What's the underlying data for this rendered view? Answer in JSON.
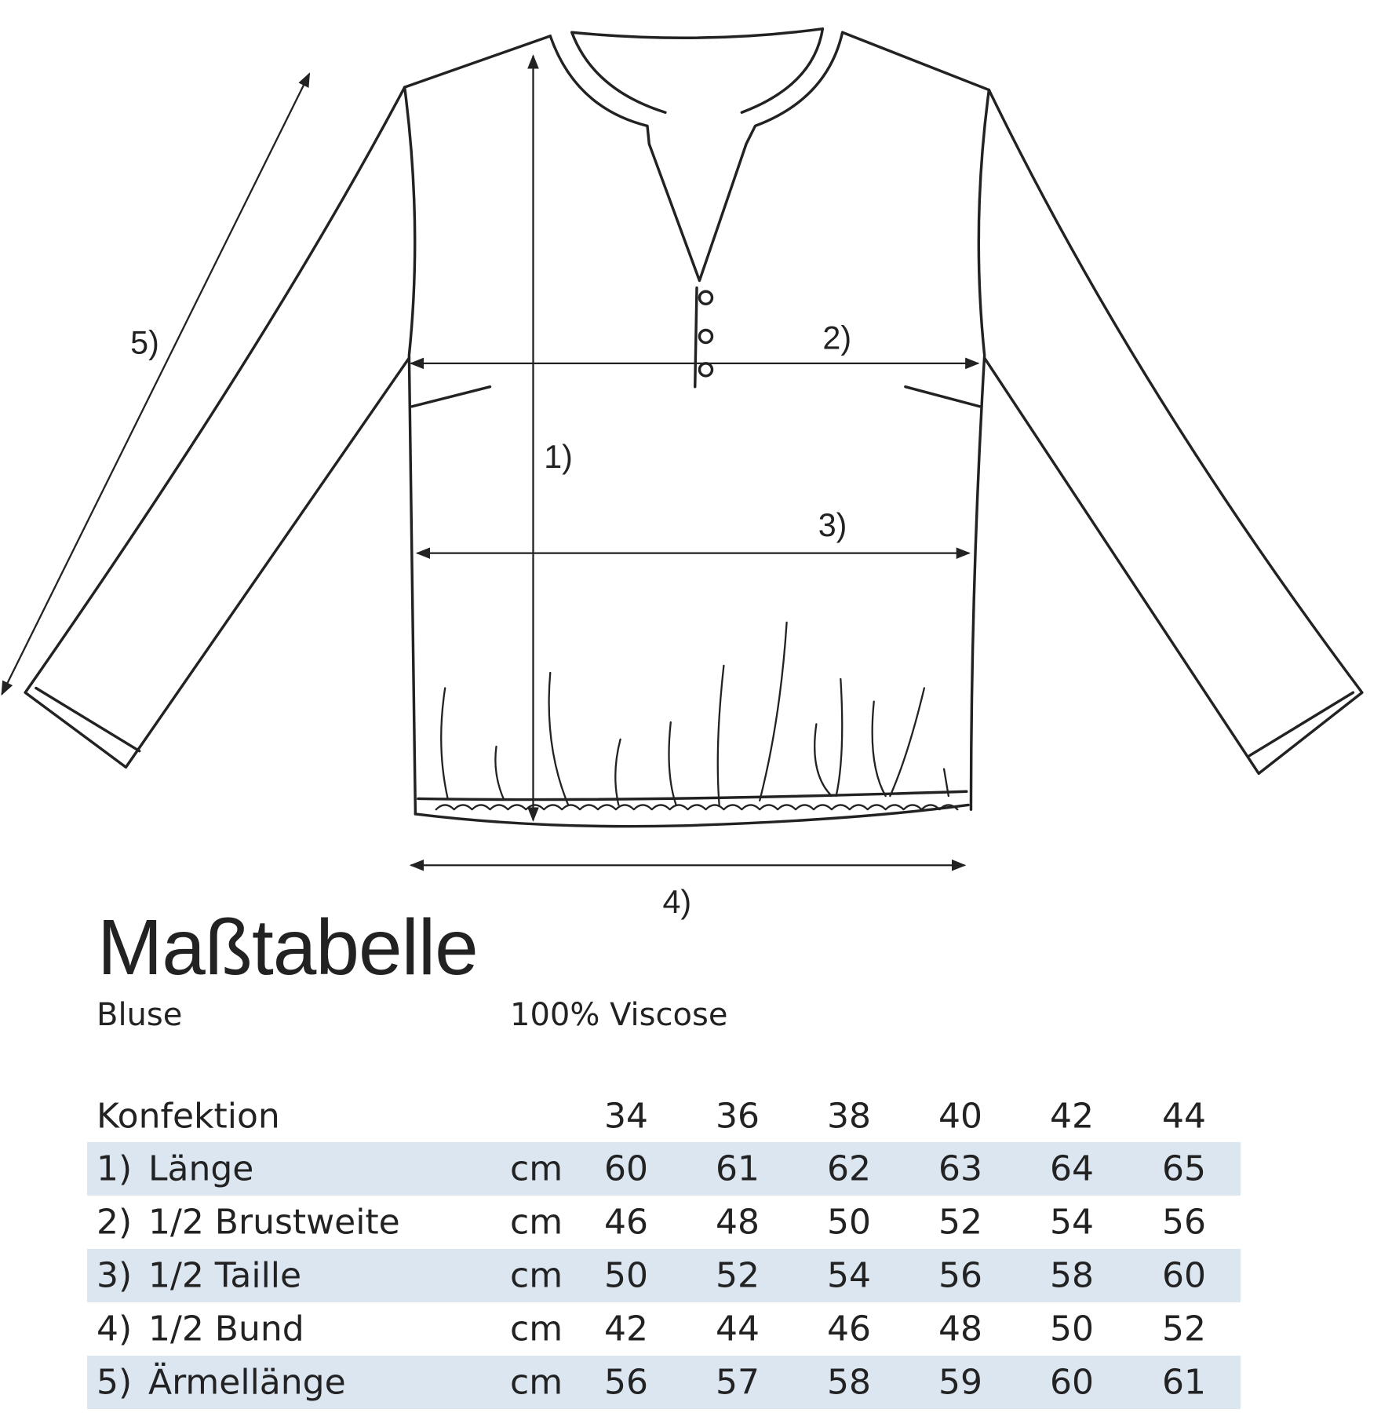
{
  "sketch": {
    "labels": {
      "m1": "1)",
      "m2": "2)",
      "m3": "3)",
      "m4": "4)",
      "m5": "5)"
    }
  },
  "header": {
    "title": "Maßtabelle",
    "product": "Bluse",
    "material": "100% Viscose"
  },
  "table": {
    "header_label": "Konfektion",
    "sizes": [
      "34",
      "36",
      "38",
      "40",
      "42",
      "44"
    ],
    "rows": [
      {
        "num": "1)",
        "name": "Länge",
        "unit": "cm",
        "values": [
          "60",
          "61",
          "62",
          "63",
          "64",
          "65"
        ]
      },
      {
        "num": "2)",
        "name": "1/2 Brustweite",
        "unit": "cm",
        "values": [
          "46",
          "48",
          "50",
          "52",
          "54",
          "56"
        ]
      },
      {
        "num": "3)",
        "name": "1/2 Taille",
        "unit": "cm",
        "values": [
          "50",
          "52",
          "54",
          "56",
          "58",
          "60"
        ]
      },
      {
        "num": "4)",
        "name": "1/2 Bund",
        "unit": "cm",
        "values": [
          "42",
          "44",
          "46",
          "48",
          "50",
          "52"
        ]
      },
      {
        "num": "5)",
        "name": "Ärmellänge",
        "unit": "cm",
        "values": [
          "56",
          "57",
          "58",
          "59",
          "60",
          "61"
        ]
      }
    ],
    "shade_color": "#dce6f1"
  }
}
